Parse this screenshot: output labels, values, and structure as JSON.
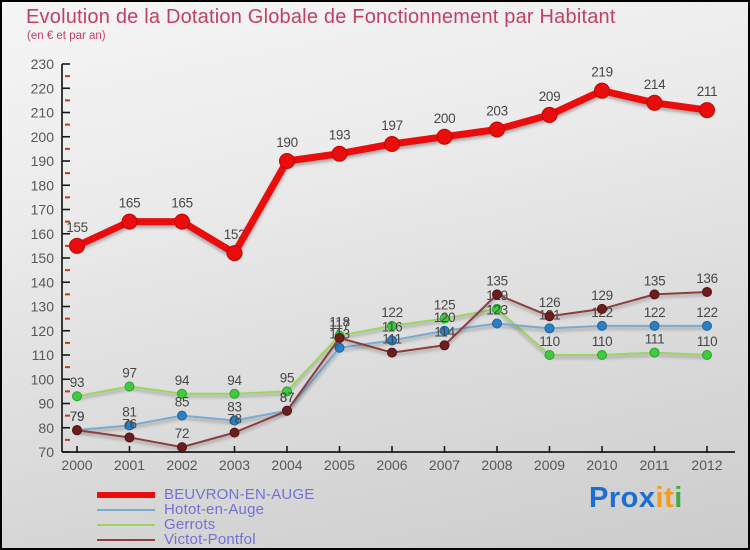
{
  "chart_data": {
    "type": "line",
    "title": "Evolution de la Dotation Globale de Fonctionnement par Habitant",
    "subtitle": "(en € et par an)",
    "x": [
      2000,
      2001,
      2002,
      2003,
      2004,
      2005,
      2006,
      2007,
      2008,
      2009,
      2010,
      2011,
      2012
    ],
    "series": [
      {
        "name": "BEUVRON-EN-AUGE",
        "values": [
          155,
          165,
          165,
          152,
          190,
          193,
          197,
          200,
          203,
          209,
          219,
          214,
          211
        ],
        "color": "#e90d0d",
        "dot_color": "#e90d0d",
        "dot_stroke": "#c00505",
        "line_width": 7,
        "dot_radius": 7.5,
        "label_dy": -14
      },
      {
        "name": "Hotot-en-Auge",
        "values": [
          79,
          81,
          85,
          83,
          87,
          113,
          116,
          120,
          123,
          121,
          122,
          122,
          122
        ],
        "color": "#79aad2",
        "dot_color": "#2b80c4",
        "dot_stroke": "#1f639c",
        "line_width": 2,
        "dot_radius": 4.5,
        "label_dy": -9
      },
      {
        "name": "Gerrots",
        "values": [
          93,
          97,
          94,
          94,
          95,
          118,
          122,
          125,
          129,
          110,
          110,
          111,
          110
        ],
        "color": "#9cd45f",
        "dot_color": "#3fca3f",
        "dot_stroke": "#2fa12f",
        "line_width": 2,
        "dot_radius": 4.5,
        "label_dy": -9
      },
      {
        "name": "Victot-Pontfol",
        "values": [
          79,
          76,
          72,
          78,
          87,
          117,
          111,
          114,
          135,
          126,
          129,
          135,
          136
        ],
        "color": "#8c3d3d",
        "dot_color": "#6b1e1e",
        "dot_stroke": "#541414",
        "line_width": 2,
        "dot_radius": 4.5,
        "label_dy": -9
      }
    ],
    "draw_order": [
      2,
      1,
      3,
      0
    ],
    "ylim": [
      70,
      230
    ],
    "ytick_major": 10,
    "ytick_minor": 5,
    "grid": false,
    "legend_position": "bottom-left",
    "axis_color": "#1a1a1a",
    "minor_tick_color": "#cc3322",
    "title_color": "#c53f63",
    "legend_text_color": "#7272d3"
  },
  "logo": {
    "segments": [
      {
        "text": "Pro",
        "color": "#1b6ed6"
      },
      {
        "text": "x",
        "color": "#1b6ed6"
      },
      {
        "text": "it",
        "color": "#f59a1d"
      },
      {
        "text": "i",
        "color": "#43a943"
      }
    ]
  }
}
